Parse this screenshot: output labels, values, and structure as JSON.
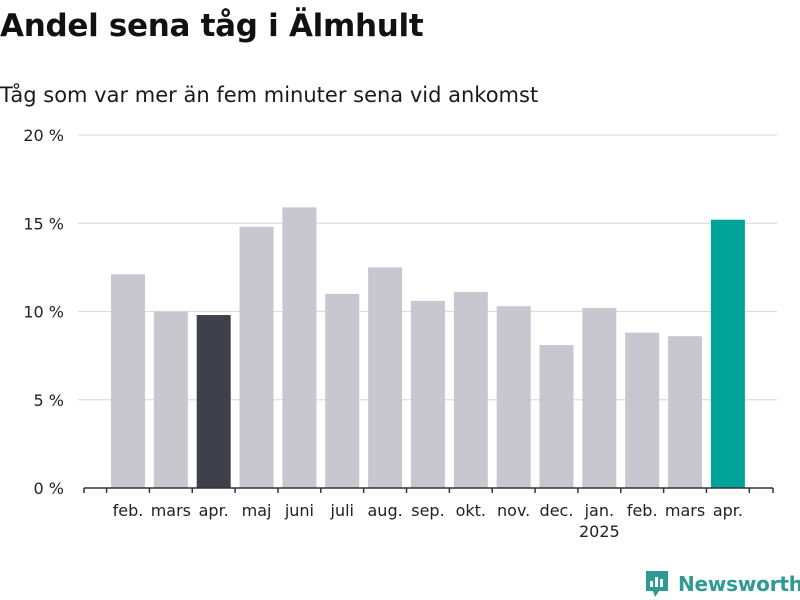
{
  "title": "Andel sena tåg i Älmhult",
  "subtitle": "Tåg som var mer än fem minuter sena vid ankomst",
  "brand": {
    "name": "Newsworthy",
    "icon": "newsworthy-logo-icon"
  },
  "colors": {
    "default_bar": "#c8c7d0",
    "previous_year_bar": "#403f4c",
    "latest_bar": "#00a397",
    "grid": "#dddddd",
    "axis": "#333333"
  },
  "chart_data": {
    "type": "bar",
    "categories": [
      "feb.",
      "mars",
      "apr.",
      "maj",
      "juni",
      "juli",
      "aug.",
      "sep.",
      "okt.",
      "nov.",
      "dec.",
      "jan.",
      "feb.",
      "mars",
      "apr."
    ],
    "year_label": {
      "text": "2025",
      "category_index": 11
    },
    "values": [
      12.1,
      10.0,
      9.8,
      14.8,
      15.9,
      11.0,
      12.5,
      10.6,
      11.1,
      10.3,
      8.1,
      10.2,
      8.8,
      8.6,
      15.2
    ],
    "highlight": {
      "2": "previous_year_bar",
      "14": "latest_bar"
    },
    "ylim": [
      0,
      20
    ],
    "yticks": [
      0,
      5,
      10,
      15,
      20
    ],
    "ytick_labels": [
      "0 %",
      "5 %",
      "10 %",
      "15 %",
      "20 %"
    ],
    "grid": true,
    "xlabel": "",
    "ylabel": ""
  }
}
